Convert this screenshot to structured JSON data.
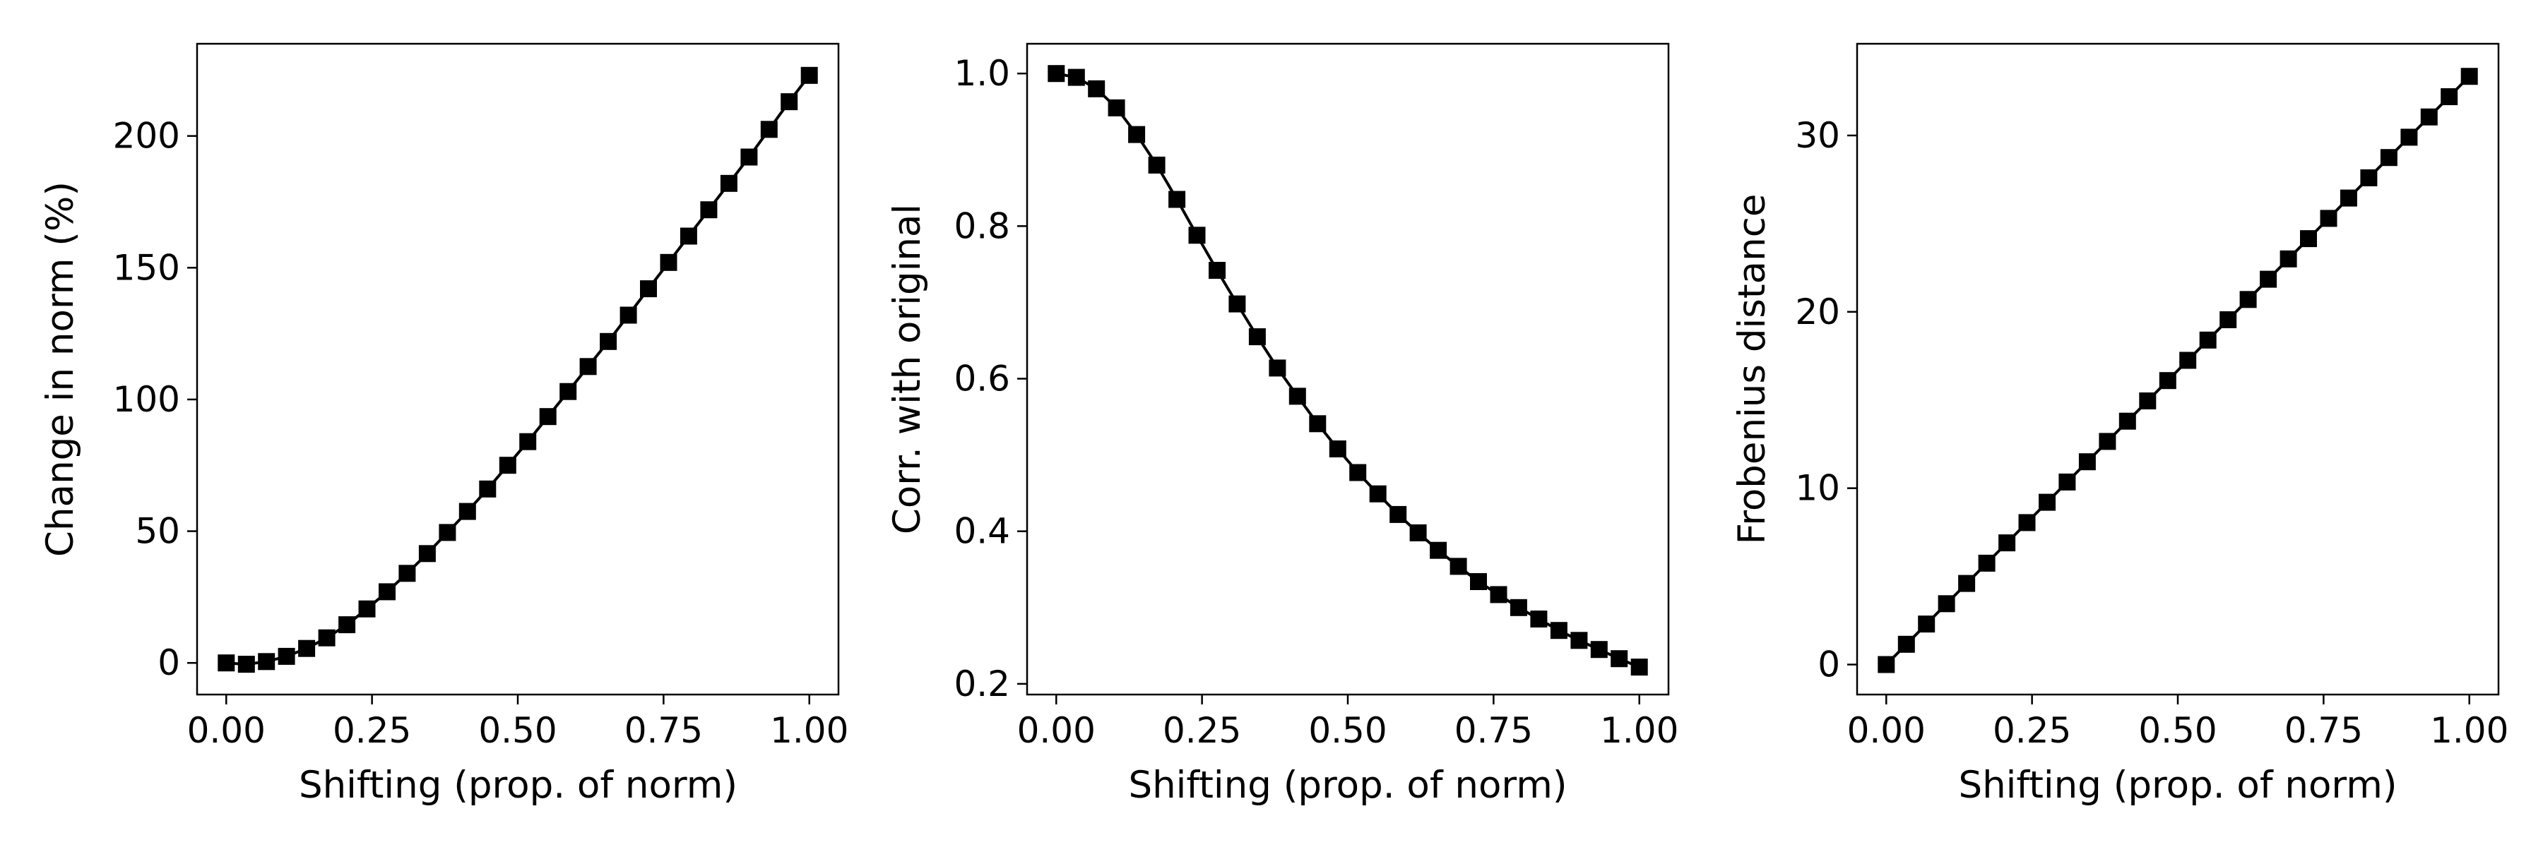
{
  "chart_data": [
    {
      "type": "line",
      "xlabel": "Shifting (prop. of norm)",
      "ylabel": "Change in norm (%)",
      "xlim": [
        -0.05,
        1.05
      ],
      "ylim": [
        -12,
        235
      ],
      "xticks": [
        0.0,
        0.25,
        0.5,
        0.75,
        1.0
      ],
      "xtick_labels": [
        "0.00",
        "0.25",
        "0.50",
        "0.75",
        "1.00"
      ],
      "yticks": [
        0,
        50,
        100,
        150,
        200
      ],
      "ytick_labels": [
        "0",
        "50",
        "100",
        "150",
        "200"
      ],
      "grid": false,
      "marker": "square",
      "color": "#000000",
      "series": [
        {
          "x": [
            0,
            0.0345,
            0.069,
            0.1034,
            0.1379,
            0.1724,
            0.2069,
            0.2414,
            0.2759,
            0.3103,
            0.3448,
            0.3793,
            0.4138,
            0.4483,
            0.4828,
            0.5172,
            0.5517,
            0.5862,
            0.6207,
            0.6552,
            0.6897,
            0.7241,
            0.7586,
            0.7931,
            0.8276,
            0.8621,
            0.8966,
            0.931,
            0.9655,
            1.0
          ],
          "y": [
            0,
            -0.5,
            0.5,
            2.5,
            5.5,
            9.5,
            14.5,
            20.5,
            27,
            34,
            41.5,
            49.5,
            57.5,
            66,
            75,
            84,
            93.5,
            103,
            112.5,
            122,
            132,
            142,
            152,
            162,
            172,
            182,
            192,
            202.5,
            213,
            223
          ]
        }
      ]
    },
    {
      "type": "line",
      "xlabel": "Shifting (prop. of norm)",
      "ylabel": "Corr. with original",
      "xlim": [
        -0.05,
        1.05
      ],
      "ylim": [
        0.186,
        1.039
      ],
      "xticks": [
        0.0,
        0.25,
        0.5,
        0.75,
        1.0
      ],
      "xtick_labels": [
        "0.00",
        "0.25",
        "0.50",
        "0.75",
        "1.00"
      ],
      "yticks": [
        0.2,
        0.4,
        0.6,
        0.8,
        1.0
      ],
      "ytick_labels": [
        "0.2",
        "0.4",
        "0.6",
        "0.8",
        "1.0"
      ],
      "grid": false,
      "marker": "square",
      "color": "#000000",
      "series": [
        {
          "x": [
            0,
            0.0345,
            0.069,
            0.1034,
            0.1379,
            0.1724,
            0.2069,
            0.2414,
            0.2759,
            0.3103,
            0.3448,
            0.3793,
            0.4138,
            0.4483,
            0.4828,
            0.5172,
            0.5517,
            0.5862,
            0.6207,
            0.6552,
            0.6897,
            0.7241,
            0.7586,
            0.7931,
            0.8276,
            0.8621,
            0.8966,
            0.931,
            0.9655,
            1.0
          ],
          "y": [
            1.0,
            0.995,
            0.98,
            0.955,
            0.92,
            0.88,
            0.835,
            0.788,
            0.742,
            0.698,
            0.655,
            0.614,
            0.577,
            0.541,
            0.508,
            0.477,
            0.449,
            0.422,
            0.398,
            0.375,
            0.354,
            0.334,
            0.317,
            0.3,
            0.285,
            0.27,
            0.257,
            0.245,
            0.233,
            0.222
          ]
        }
      ]
    },
    {
      "type": "line",
      "xlabel": "Shifting (prop. of norm)",
      "ylabel": "Frobenius distance",
      "xlim": [
        -0.05,
        1.05
      ],
      "ylim": [
        -1.7,
        35.2
      ],
      "xticks": [
        0.0,
        0.25,
        0.5,
        0.75,
        1.0
      ],
      "xtick_labels": [
        "0.00",
        "0.25",
        "0.50",
        "0.75",
        "1.00"
      ],
      "yticks": [
        0,
        10,
        20,
        30
      ],
      "ytick_labels": [
        "0",
        "10",
        "20",
        "30"
      ],
      "grid": false,
      "marker": "square",
      "color": "#000000",
      "series": [
        {
          "x": [
            0,
            0.0345,
            0.069,
            0.1034,
            0.1379,
            0.1724,
            0.2069,
            0.2414,
            0.2759,
            0.3103,
            0.3448,
            0.3793,
            0.4138,
            0.4483,
            0.4828,
            0.5172,
            0.5517,
            0.5862,
            0.6207,
            0.6552,
            0.6897,
            0.7241,
            0.7586,
            0.7931,
            0.8276,
            0.8621,
            0.8966,
            0.931,
            0.9655,
            1.0
          ],
          "y": [
            0,
            1.15,
            2.3,
            3.45,
            4.6,
            5.75,
            6.9,
            8.05,
            9.2,
            10.35,
            11.5,
            12.65,
            13.8,
            14.95,
            16.1,
            17.25,
            18.4,
            19.55,
            20.7,
            21.85,
            23.0,
            24.15,
            25.3,
            26.45,
            27.6,
            28.75,
            29.9,
            31.05,
            32.2,
            33.35
          ]
        }
      ]
    }
  ]
}
